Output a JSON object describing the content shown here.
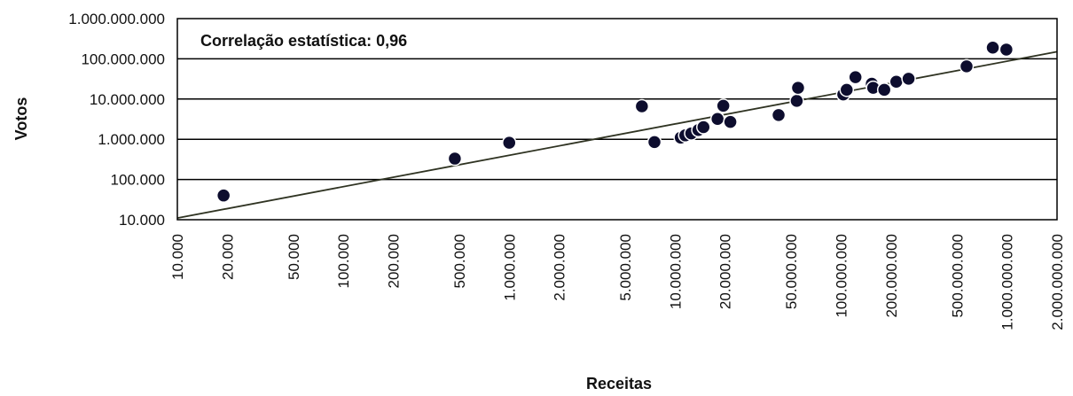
{
  "chart_data": {
    "type": "scatter",
    "title": "",
    "xlabel": "Receitas",
    "ylabel": "Votos",
    "x_scale": "log",
    "y_scale": "log",
    "xlim": [
      10000,
      2000000000
    ],
    "ylim": [
      10000,
      1000000000
    ],
    "grid": "horizontal",
    "annotation": "Correlação estatística: 0,96",
    "x_ticks": [
      {
        "value": 10000,
        "label": "10.000"
      },
      {
        "value": 20000,
        "label": "20.000"
      },
      {
        "value": 50000,
        "label": "50.000"
      },
      {
        "value": 100000,
        "label": "100.000"
      },
      {
        "value": 200000,
        "label": "200.000"
      },
      {
        "value": 500000,
        "label": "500.000"
      },
      {
        "value": 1000000,
        "label": "1.000.000"
      },
      {
        "value": 2000000,
        "label": "2.000.000"
      },
      {
        "value": 5000000,
        "label": "5.000.000"
      },
      {
        "value": 10000000,
        "label": "10.000.000"
      },
      {
        "value": 20000000,
        "label": "20.000.000"
      },
      {
        "value": 50000000,
        "label": "50.000.000"
      },
      {
        "value": 100000000,
        "label": "100.000.000"
      },
      {
        "value": 200000000,
        "label": "200.000.000"
      },
      {
        "value": 500000000,
        "label": "500.000.000"
      },
      {
        "value": 1000000000,
        "label": "1.000.000.000"
      },
      {
        "value": 2000000000,
        "label": "2.000.000.000"
      }
    ],
    "y_ticks": [
      {
        "value": 10000,
        "label": "10.000"
      },
      {
        "value": 100000,
        "label": "100.000"
      },
      {
        "value": 1000000,
        "label": "1.000.000"
      },
      {
        "value": 10000000,
        "label": "10.000.000"
      },
      {
        "value": 100000000,
        "label": "100.000.000"
      },
      {
        "value": 1000000000,
        "label": "1.000.000.000"
      }
    ],
    "points": [
      {
        "x": 19000,
        "y": 40000
      },
      {
        "x": 470000,
        "y": 330000
      },
      {
        "x": 1000000,
        "y": 820000
      },
      {
        "x": 6300000,
        "y": 6600000
      },
      {
        "x": 7500000,
        "y": 850000
      },
      {
        "x": 10800000,
        "y": 1100000
      },
      {
        "x": 11500000,
        "y": 1250000
      },
      {
        "x": 12500000,
        "y": 1400000
      },
      {
        "x": 13800000,
        "y": 1700000
      },
      {
        "x": 14800000,
        "y": 2000000
      },
      {
        "x": 18000000,
        "y": 3200000
      },
      {
        "x": 19500000,
        "y": 6800000
      },
      {
        "x": 21500000,
        "y": 2700000
      },
      {
        "x": 42000000,
        "y": 4000000
      },
      {
        "x": 54000000,
        "y": 9000000
      },
      {
        "x": 55000000,
        "y": 19000000
      },
      {
        "x": 103000000,
        "y": 13000000
      },
      {
        "x": 108000000,
        "y": 17000000
      },
      {
        "x": 122000000,
        "y": 35000000
      },
      {
        "x": 153000000,
        "y": 24000000
      },
      {
        "x": 156000000,
        "y": 19000000
      },
      {
        "x": 182000000,
        "y": 17000000
      },
      {
        "x": 215000000,
        "y": 27000000
      },
      {
        "x": 255000000,
        "y": 32000000
      },
      {
        "x": 570000000,
        "y": 65000000
      },
      {
        "x": 820000000,
        "y": 190000000
      },
      {
        "x": 990000000,
        "y": 170000000
      }
    ],
    "trendline": {
      "x": [
        10000,
        2000000000
      ],
      "y": [
        11000,
        150000000
      ]
    },
    "colors": {
      "marker": "#0d0d2e",
      "marker_edge": "#ffffff",
      "trendline": "#2f3322",
      "grid": "#000000",
      "frame": "#000000"
    }
  }
}
